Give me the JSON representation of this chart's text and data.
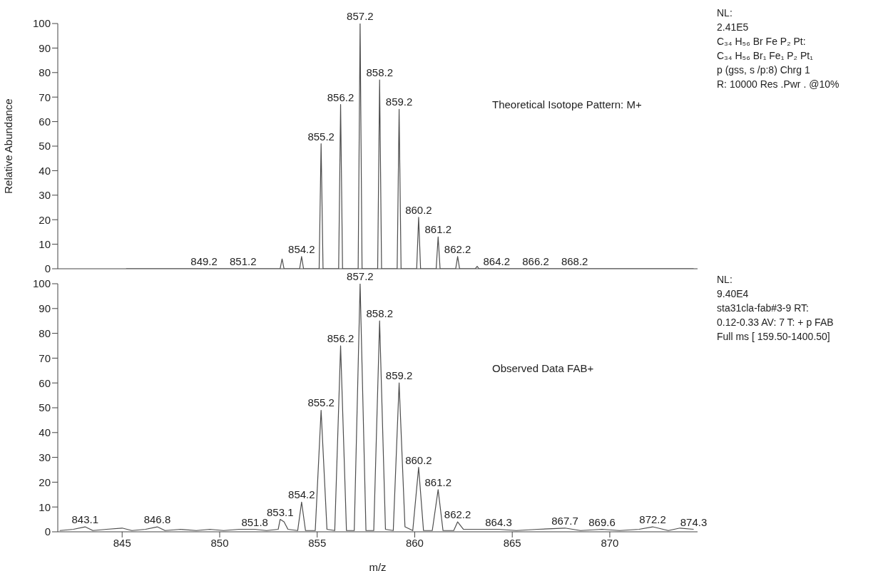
{
  "chart_data": [
    {
      "type": "line",
      "title": "Theoretical Isotope Pattern: M+",
      "ylabel": "Relative Abundance",
      "color": "#4d4d4d",
      "marker": "none",
      "tick_labels": "y",
      "x": [
        845.2,
        853.1,
        853.2,
        853.3,
        854.1,
        854.2,
        854.3,
        855.1,
        855.2,
        855.3,
        856.1,
        856.2,
        856.3,
        857.1,
        857.2,
        857.3,
        858.1,
        858.2,
        858.3,
        859.1,
        859.2,
        859.3,
        860.1,
        860.2,
        860.3,
        861.1,
        861.2,
        861.3,
        862.1,
        862.2,
        862.3,
        863.1,
        863.2,
        863.3,
        874.3
      ],
      "values": [
        0,
        0,
        4,
        0,
        0,
        5,
        0,
        0,
        51,
        0,
        0,
        67,
        0,
        0,
        100,
        0,
        0,
        77,
        0,
        0,
        65,
        0,
        0,
        21,
        0,
        0,
        13,
        0,
        0,
        5,
        0,
        0,
        1,
        0,
        0
      ],
      "xlim": [
        841.7,
        874.5
      ],
      "xticks": [
        845,
        850,
        855,
        860,
        865,
        870
      ],
      "ylim": [
        0,
        100
      ],
      "yticks": [
        0,
        10,
        20,
        30,
        40,
        50,
        60,
        70,
        80,
        90,
        100
      ],
      "annotations": [
        "NL:",
        "2.41E5",
        "C₃₄ H₅₆ Br Fe P₂ Pt:",
        "C₃₄ H₅₆ Br₁ Fe₁ P₂ Pt₁",
        "p (gss, s /p:8) Chrg 1",
        "R: 10000 Res .Pwr . @10%",
        {
          "text": "849.2",
          "x": 849.2,
          "y": 0
        },
        {
          "text": "851.2",
          "x": 851.2,
          "y": 0
        },
        {
          "text": "854.2",
          "x": 854.2,
          "y": 5
        },
        {
          "text": "855.2",
          "x": 855.2,
          "y": 51
        },
        {
          "text": "856.2",
          "x": 856.2,
          "y": 67
        },
        {
          "text": "857.2",
          "x": 857.2,
          "y": 100
        },
        {
          "text": "858.2",
          "x": 858.2,
          "y": 77
        },
        {
          "text": "859.2",
          "x": 859.2,
          "y": 65
        },
        {
          "text": "860.2",
          "x": 860.2,
          "y": 21
        },
        {
          "text": "861.2",
          "x": 861.2,
          "y": 13
        },
        {
          "text": "862.2",
          "x": 862.2,
          "y": 5
        },
        {
          "text": "864.2",
          "x": 864.2,
          "y": 0
        },
        {
          "text": "866.2",
          "x": 866.2,
          "y": 0
        },
        {
          "text": "868.2",
          "x": 868.2,
          "y": 0
        }
      ]
    },
    {
      "type": "line",
      "title": "Observed Data FAB+",
      "xlabel": "m/z",
      "color": "#4d4d4d",
      "marker": "none",
      "x": [
        841.8,
        842.5,
        843.1,
        843.5,
        844.2,
        845.0,
        845.5,
        846.2,
        846.8,
        847.2,
        848.0,
        848.8,
        849.5,
        850.2,
        851.0,
        851.8,
        852.4,
        853.0,
        853.1,
        853.3,
        853.5,
        854.0,
        854.2,
        854.4,
        854.9,
        855.2,
        855.5,
        855.9,
        856.2,
        856.5,
        856.9,
        857.2,
        857.5,
        857.9,
        858.2,
        858.5,
        858.9,
        859.2,
        859.5,
        859.9,
        860.2,
        860.45,
        860.9,
        861.2,
        861.45,
        862.0,
        862.2,
        862.5,
        863.2,
        864.3,
        865.2,
        866.3,
        867.7,
        868.5,
        869.6,
        870.5,
        871.5,
        872.2,
        873.0,
        873.6,
        874.3
      ],
      "values": [
        0.5,
        1,
        2,
        0.5,
        1,
        1.5,
        0.5,
        1,
        2,
        0.5,
        1,
        0.5,
        1,
        0.5,
        1,
        1,
        0.5,
        1,
        5,
        4,
        1,
        0.5,
        12,
        0.5,
        0.5,
        49,
        1,
        0.5,
        75,
        0.5,
        0.5,
        100,
        0.5,
        0.5,
        85,
        1,
        0.5,
        60,
        2,
        0.5,
        26,
        0.5,
        0.5,
        17,
        0.5,
        0.5,
        4,
        1,
        1,
        1,
        0.5,
        1,
        1.5,
        0.5,
        1,
        0.5,
        1,
        2,
        0.5,
        1.5,
        1
      ],
      "xlim": [
        841.7,
        874.5
      ],
      "xticks": [
        845,
        850,
        855,
        860,
        865,
        870
      ],
      "ylim": [
        0,
        100
      ],
      "yticks": [
        0,
        10,
        20,
        30,
        40,
        50,
        60,
        70,
        80,
        90,
        100
      ],
      "annotations": [
        "NL:",
        "9.40E4",
        "sta31cla-fab#3-9  RT:",
        "0.12-0.33  AV: 7 T: + p FAB",
        "Full ms [ 159.50-1400.50]",
        {
          "text": "843.1",
          "x": 843.1,
          "y": 2
        },
        {
          "text": "846.8",
          "x": 846.8,
          "y": 2
        },
        {
          "text": "851.8",
          "x": 851.8,
          "y": 1
        },
        {
          "text": "853.1",
          "x": 853.1,
          "y": 5
        },
        {
          "text": "854.2",
          "x": 854.2,
          "y": 12
        },
        {
          "text": "855.2",
          "x": 855.2,
          "y": 49
        },
        {
          "text": "856.2",
          "x": 856.2,
          "y": 75
        },
        {
          "text": "857.2",
          "x": 857.2,
          "y": 100
        },
        {
          "text": "858.2",
          "x": 858.2,
          "y": 85
        },
        {
          "text": "859.2",
          "x": 859.2,
          "y": 60
        },
        {
          "text": "860.2",
          "x": 860.2,
          "y": 26
        },
        {
          "text": "861.2",
          "x": 861.2,
          "y": 17
        },
        {
          "text": "862.2",
          "x": 862.2,
          "y": 4
        },
        {
          "text": "864.3",
          "x": 864.3,
          "y": 1
        },
        {
          "text": "867.7",
          "x": 867.7,
          "y": 1.5
        },
        {
          "text": "869.6",
          "x": 869.6,
          "y": 1
        },
        {
          "text": "872.2",
          "x": 872.2,
          "y": 2
        },
        {
          "text": "874.3",
          "x": 874.3,
          "y": 1
        }
      ]
    }
  ]
}
